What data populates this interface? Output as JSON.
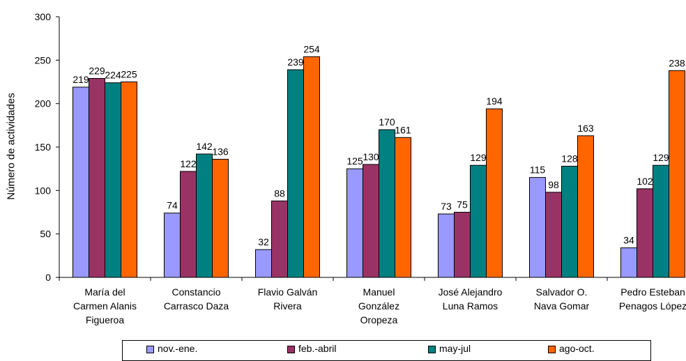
{
  "chart_data": {
    "type": "bar",
    "title": "",
    "xlabel": "",
    "ylabel": "Número de actividades",
    "ylim": [
      0,
      300
    ],
    "yticks": [
      0,
      50,
      100,
      150,
      200,
      250,
      300
    ],
    "grid": false,
    "legend_position": "bottom",
    "categories": [
      [
        "María del",
        "Carmen Alanis",
        "Figueroa"
      ],
      [
        "Constancio",
        "Carrasco Daza"
      ],
      [
        "Flavio Galván",
        "Rivera"
      ],
      [
        "Manuel",
        "González",
        "Oropeza"
      ],
      [
        "José Alejandro",
        "Luna Ramos"
      ],
      [
        "Salvador O.",
        "Nava Gomar"
      ],
      [
        "Pedro Esteban",
        "Penagos López"
      ]
    ],
    "series": [
      {
        "name": "nov.-ene.",
        "color": "#9999ff",
        "values": [
          219,
          74,
          32,
          125,
          73,
          115,
          34
        ]
      },
      {
        "name": "feb.-abril",
        "color": "#993366",
        "values": [
          229,
          122,
          88,
          130,
          75,
          98,
          102
        ]
      },
      {
        "name": "may-jul",
        "color": "#008080",
        "values": [
          224,
          142,
          239,
          170,
          129,
          128,
          129
        ]
      },
      {
        "name": "ago-oct.",
        "color": "#ff6600",
        "values": [
          225,
          136,
          254,
          161,
          194,
          163,
          238
        ]
      }
    ]
  }
}
